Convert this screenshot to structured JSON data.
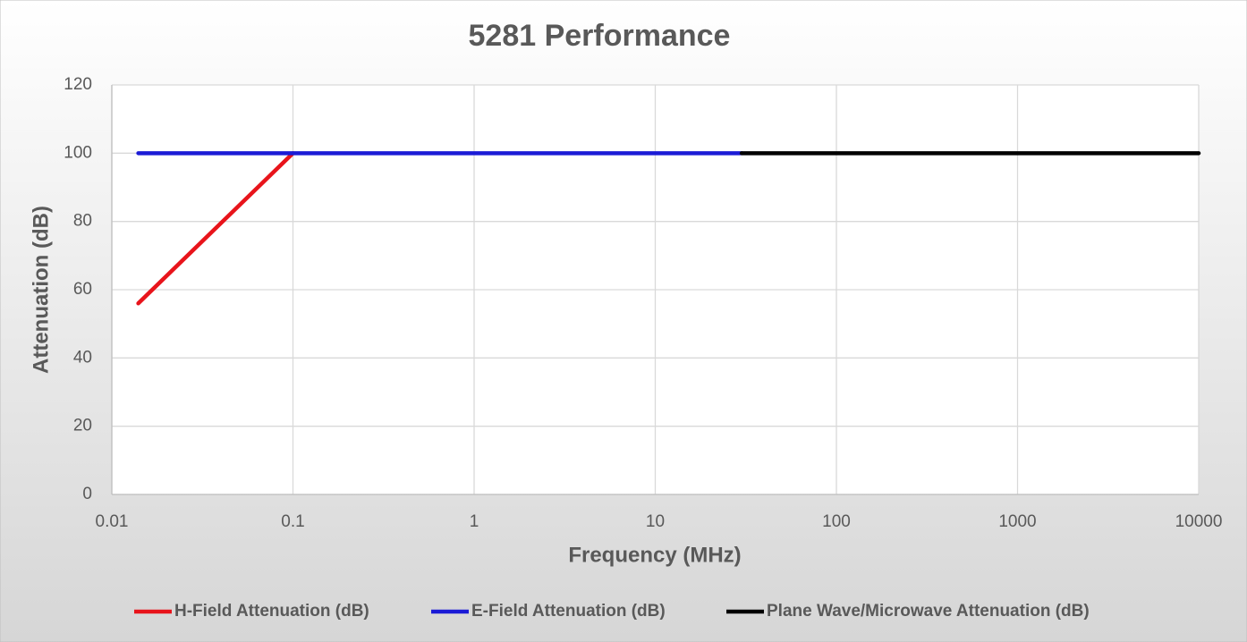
{
  "chart_data": {
    "type": "line",
    "title": "5281 Performance",
    "x_label": "Frequency (MHz)",
    "y_label": "Attenuation (dB)",
    "xscale": "log",
    "xlim": [
      0.01,
      10000
    ],
    "xticks": [
      0.01,
      0.1,
      1,
      10,
      100,
      1000,
      10000
    ],
    "ylim": [
      0,
      120
    ],
    "yticks": [
      0,
      20,
      40,
      60,
      80,
      100,
      120
    ],
    "grid": true,
    "legend": "bottom",
    "series": [
      {
        "name": "H-Field Attenuation (dB)",
        "color": "#e8141b",
        "x": [
          0.014,
          0.1
        ],
        "values": [
          56,
          100
        ]
      },
      {
        "name": "E-Field Attenuation (dB)",
        "color": "#1b1bd6",
        "x": [
          0.014,
          30
        ],
        "values": [
          100,
          100
        ]
      },
      {
        "name": "Plane Wave/Microwave Attenuation (dB)",
        "color": "#000000",
        "x": [
          30,
          10000
        ],
        "values": [
          100,
          100
        ]
      }
    ]
  }
}
